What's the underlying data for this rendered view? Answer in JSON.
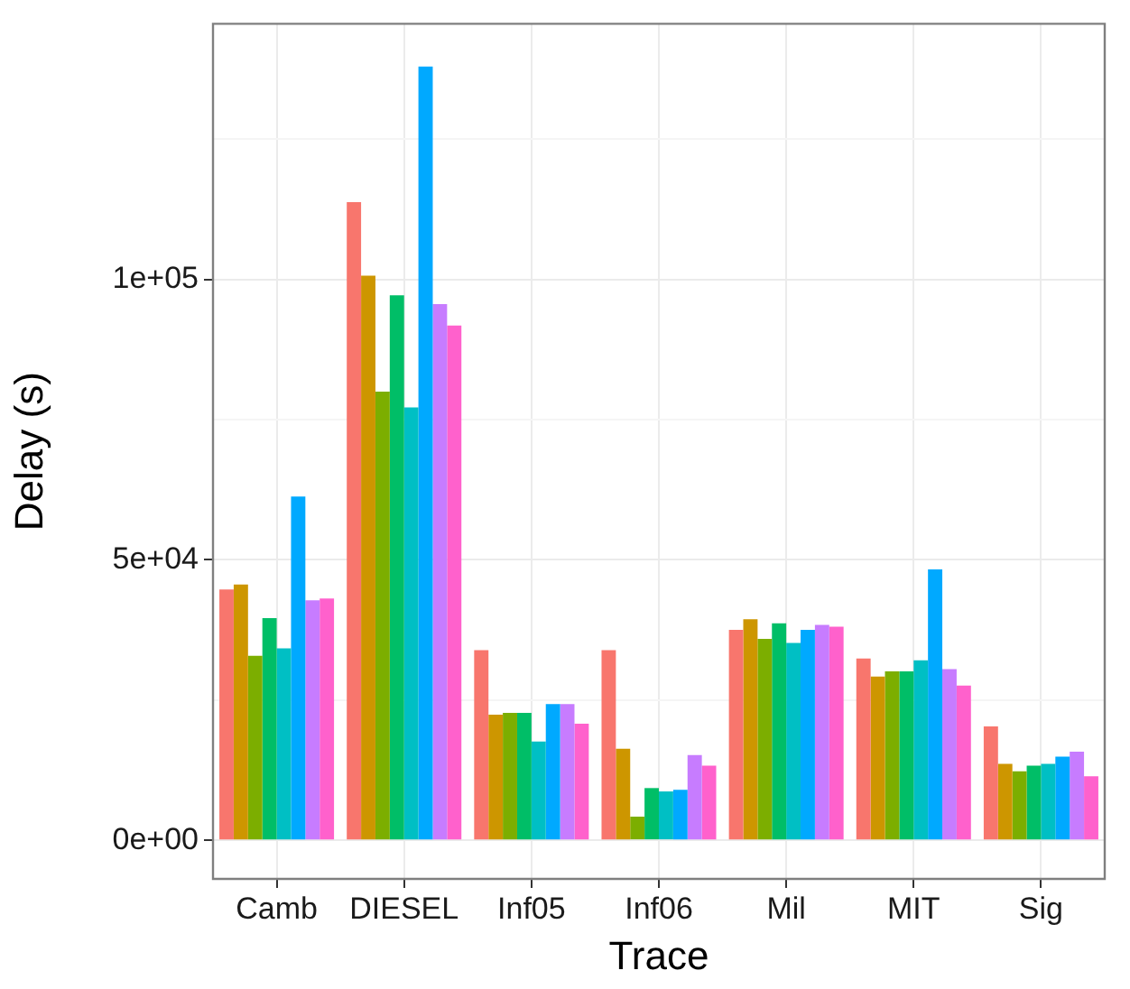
{
  "chart_data": {
    "type": "bar",
    "xlabel": "Trace",
    "ylabel": "Delay (s)",
    "categories": [
      "Camb",
      "DIESEL",
      "Inf05",
      "Inf06",
      "Mil",
      "MIT",
      "Sig"
    ],
    "series": [
      {
        "color": "#f8766d",
        "values": [
          44700,
          113800,
          33900,
          33900,
          37500,
          32400,
          20300
        ]
      },
      {
        "color": "#cd9600",
        "values": [
          45600,
          100700,
          22400,
          16300,
          39400,
          29200,
          13600
        ]
      },
      {
        "color": "#7cae00",
        "values": [
          32900,
          80000,
          22700,
          4200,
          35900,
          30100,
          12300
        ]
      },
      {
        "color": "#00be67",
        "values": [
          39600,
          97200,
          22700,
          9300,
          38700,
          30100,
          13300
        ]
      },
      {
        "color": "#00bfc4",
        "values": [
          34200,
          77200,
          17600,
          8700,
          35200,
          32100,
          13600
        ]
      },
      {
        "color": "#00a9ff",
        "values": [
          61300,
          138000,
          24300,
          9000,
          37500,
          48300,
          14900
        ]
      },
      {
        "color": "#c77cff",
        "values": [
          42800,
          95600,
          24300,
          15200,
          38400,
          30500,
          15800
        ]
      },
      {
        "color": "#ff61cc",
        "values": [
          43100,
          91800,
          20800,
          13300,
          38100,
          27600,
          11400
        ]
      }
    ],
    "ylim": [
      -6900,
      145600
    ],
    "yticks": [
      {
        "value": 0,
        "label": "0e+00"
      },
      {
        "value": 25000,
        "label": null
      },
      {
        "value": 50000,
        "label": "5e+04"
      },
      {
        "value": 75000,
        "label": null
      },
      {
        "value": 100000,
        "label": "1e+05"
      },
      {
        "value": 125000,
        "label": null
      }
    ],
    "grid": true,
    "legend": false
  }
}
